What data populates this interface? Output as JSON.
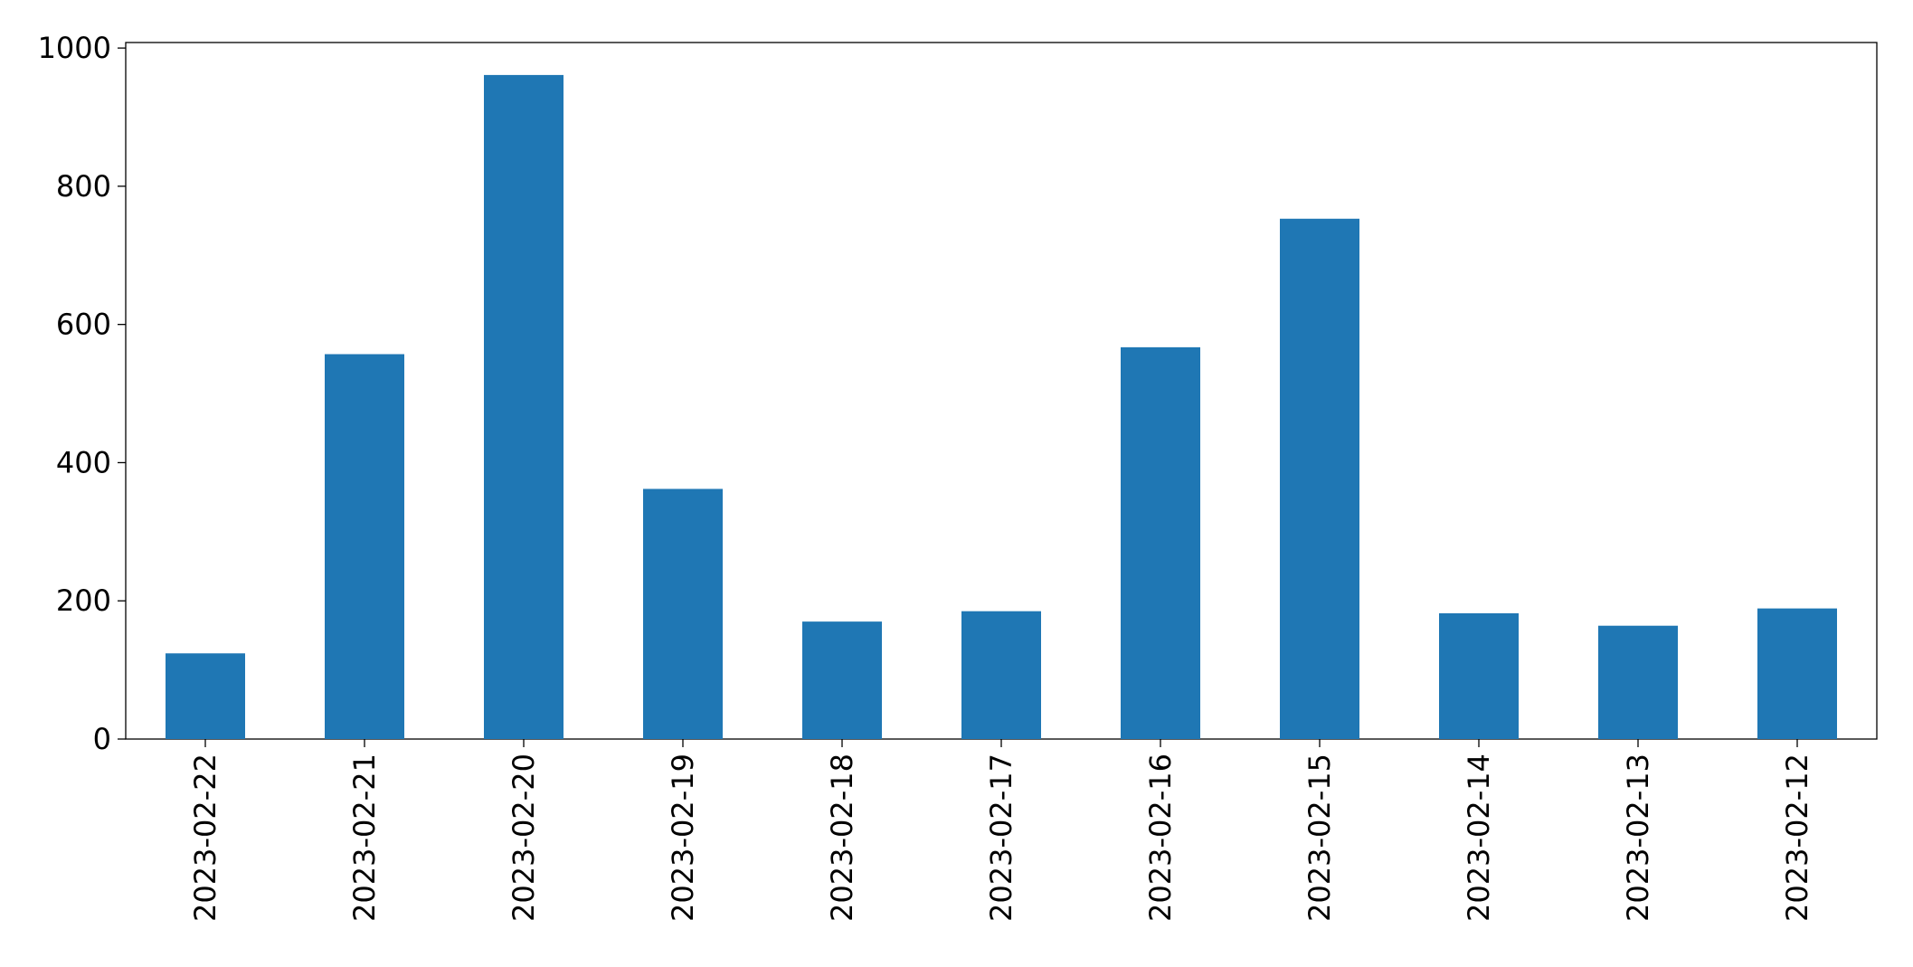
{
  "chart_data": {
    "type": "bar",
    "categories": [
      "2023-02-22",
      "2023-02-21",
      "2023-02-20",
      "2023-02-19",
      "2023-02-18",
      "2023-02-17",
      "2023-02-16",
      "2023-02-15",
      "2023-02-14",
      "2023-02-13",
      "2023-02-12"
    ],
    "values": [
      124,
      557,
      961,
      362,
      170,
      185,
      567,
      753,
      182,
      164,
      189
    ],
    "color": "#1f77b4",
    "ylim": [
      0,
      1008
    ],
    "yticks": [
      0,
      200,
      400,
      600,
      800,
      1000
    ],
    "grid": false
  }
}
